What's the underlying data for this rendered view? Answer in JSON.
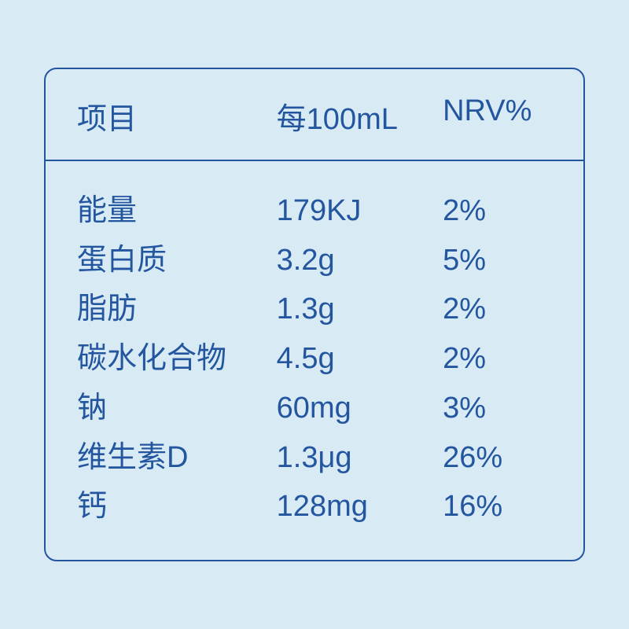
{
  "colors": {
    "background": "#d8ebf5",
    "border": "#2456a0",
    "text": "#2456a0"
  },
  "table": {
    "headers": {
      "col1": "项目",
      "col2": "每100mL",
      "col3": "NRV%"
    },
    "rows": [
      {
        "name": "能量",
        "amount": "179KJ",
        "nrv": "2%",
        "weight": "normal"
      },
      {
        "name": "蛋白质",
        "amount": "3.2g",
        "nrv": "5%",
        "weight": "normal"
      },
      {
        "name": "脂肪",
        "amount": "1.3g",
        "nrv": "2%",
        "weight": "normal"
      },
      {
        "name": "碳水化合物",
        "amount": "4.5g",
        "nrv": "2%",
        "weight": "normal"
      },
      {
        "name": "钠",
        "amount": "60mg",
        "nrv": "3%",
        "weight": "normal"
      },
      {
        "name": "维生素D",
        "amount": "1.3μg",
        "nrv": "26%",
        "weight": "light"
      },
      {
        "name": "钙",
        "amount": "128mg",
        "nrv": "16%",
        "weight": "light"
      }
    ]
  }
}
